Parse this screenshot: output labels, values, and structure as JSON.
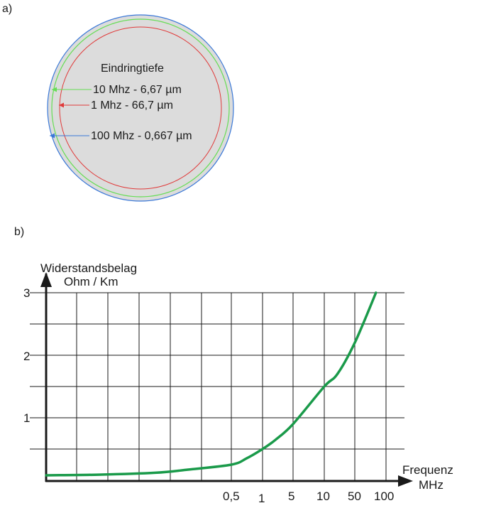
{
  "part_a": {
    "label": "a)",
    "title": "Eindringtiefe",
    "annotations": [
      {
        "text": "10 Mhz - 6,67 µm",
        "color": "#66dd55"
      },
      {
        "text": "1 Mhz - 66,7 µm",
        "color": "#e03a3a"
      },
      {
        "text": "100 Mhz - 0,667 µm",
        "color": "#3a78d8"
      }
    ],
    "colors": {
      "fill": "#dcdcdc",
      "ring_100mhz": "#3a78d8",
      "ring_10mhz": "#66dd55",
      "ring_1mhz": "#e03a3a"
    }
  },
  "part_b": {
    "label": "b)",
    "ylabel_line1": "Widerstandsbelag",
    "ylabel_line2": "Ohm / Km",
    "xlabel_line1": "Frequenz",
    "xlabel_line2": "MHz",
    "y_ticks": [
      "1",
      "2",
      "3"
    ],
    "x_ticks": [
      "0,5",
      "1",
      "5",
      "10",
      "50",
      "100"
    ],
    "curve_color": "#1a9a4a"
  },
  "chart_data": {
    "type": "line",
    "xlabel": "Frequenz MHz",
    "ylabel": "Widerstandsbelag Ohm / Km",
    "x_ticks": [
      "0,5",
      "1",
      "5",
      "10",
      "50",
      "100"
    ],
    "y_ticks": [
      1,
      2,
      3
    ],
    "ylim": [
      0,
      3
    ],
    "grid": true,
    "series": [
      {
        "x": [
          0.01,
          0.03,
          0.1,
          0.2,
          0.5,
          0.7,
          1,
          2,
          5,
          10,
          20,
          50,
          80
        ],
        "values": [
          0.08,
          0.09,
          0.12,
          0.17,
          0.25,
          0.35,
          0.5,
          0.65,
          0.9,
          1.5,
          1.7,
          2.2,
          3.0
        ]
      }
    ]
  }
}
